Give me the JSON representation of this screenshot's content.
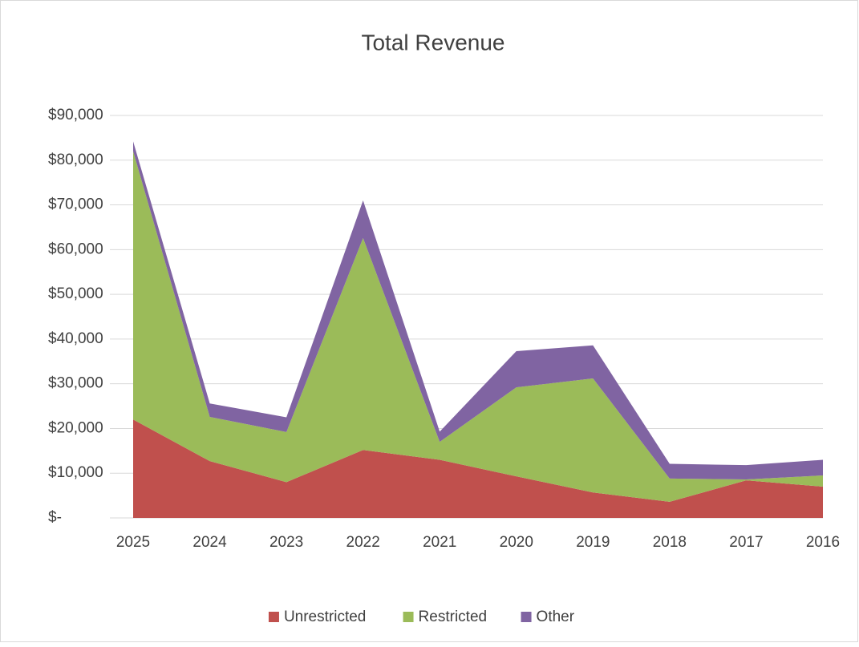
{
  "chart_data": {
    "type": "stacked_area",
    "title": "Total Revenue",
    "categories": [
      "2025",
      "2024",
      "2023",
      "2022",
      "2021",
      "2020",
      "2019",
      "2018",
      "2017",
      "2016"
    ],
    "series": [
      {
        "name": "Unrestricted",
        "color": "#c0504d",
        "values": [
          22000,
          12700,
          8000,
          15200,
          13000,
          9300,
          5700,
          3600,
          8400,
          7000
        ]
      },
      {
        "name": "Restricted",
        "color": "#9bbb59",
        "values": [
          60000,
          9900,
          11200,
          47400,
          4000,
          19900,
          25500,
          5200,
          200,
          2500
        ]
      },
      {
        "name": "Other",
        "color": "#8064a2",
        "values": [
          2200,
          3000,
          3300,
          8400,
          2300,
          8100,
          7400,
          3300,
          3200,
          3500
        ]
      }
    ],
    "ylim": [
      0,
      90000
    ],
    "yticks": [
      {
        "value": 0,
        "label": "$-"
      },
      {
        "value": 10000,
        "label": "$10,000"
      },
      {
        "value": 20000,
        "label": "$20,000"
      },
      {
        "value": 30000,
        "label": "$30,000"
      },
      {
        "value": 40000,
        "label": "$40,000"
      },
      {
        "value": 50000,
        "label": "$50,000"
      },
      {
        "value": 60000,
        "label": "$60,000"
      },
      {
        "value": 70000,
        "label": "$70,000"
      },
      {
        "value": 80000,
        "label": "$80,000"
      },
      {
        "value": 90000,
        "label": "$90,000"
      }
    ],
    "grid": true,
    "legend": "bottom"
  }
}
